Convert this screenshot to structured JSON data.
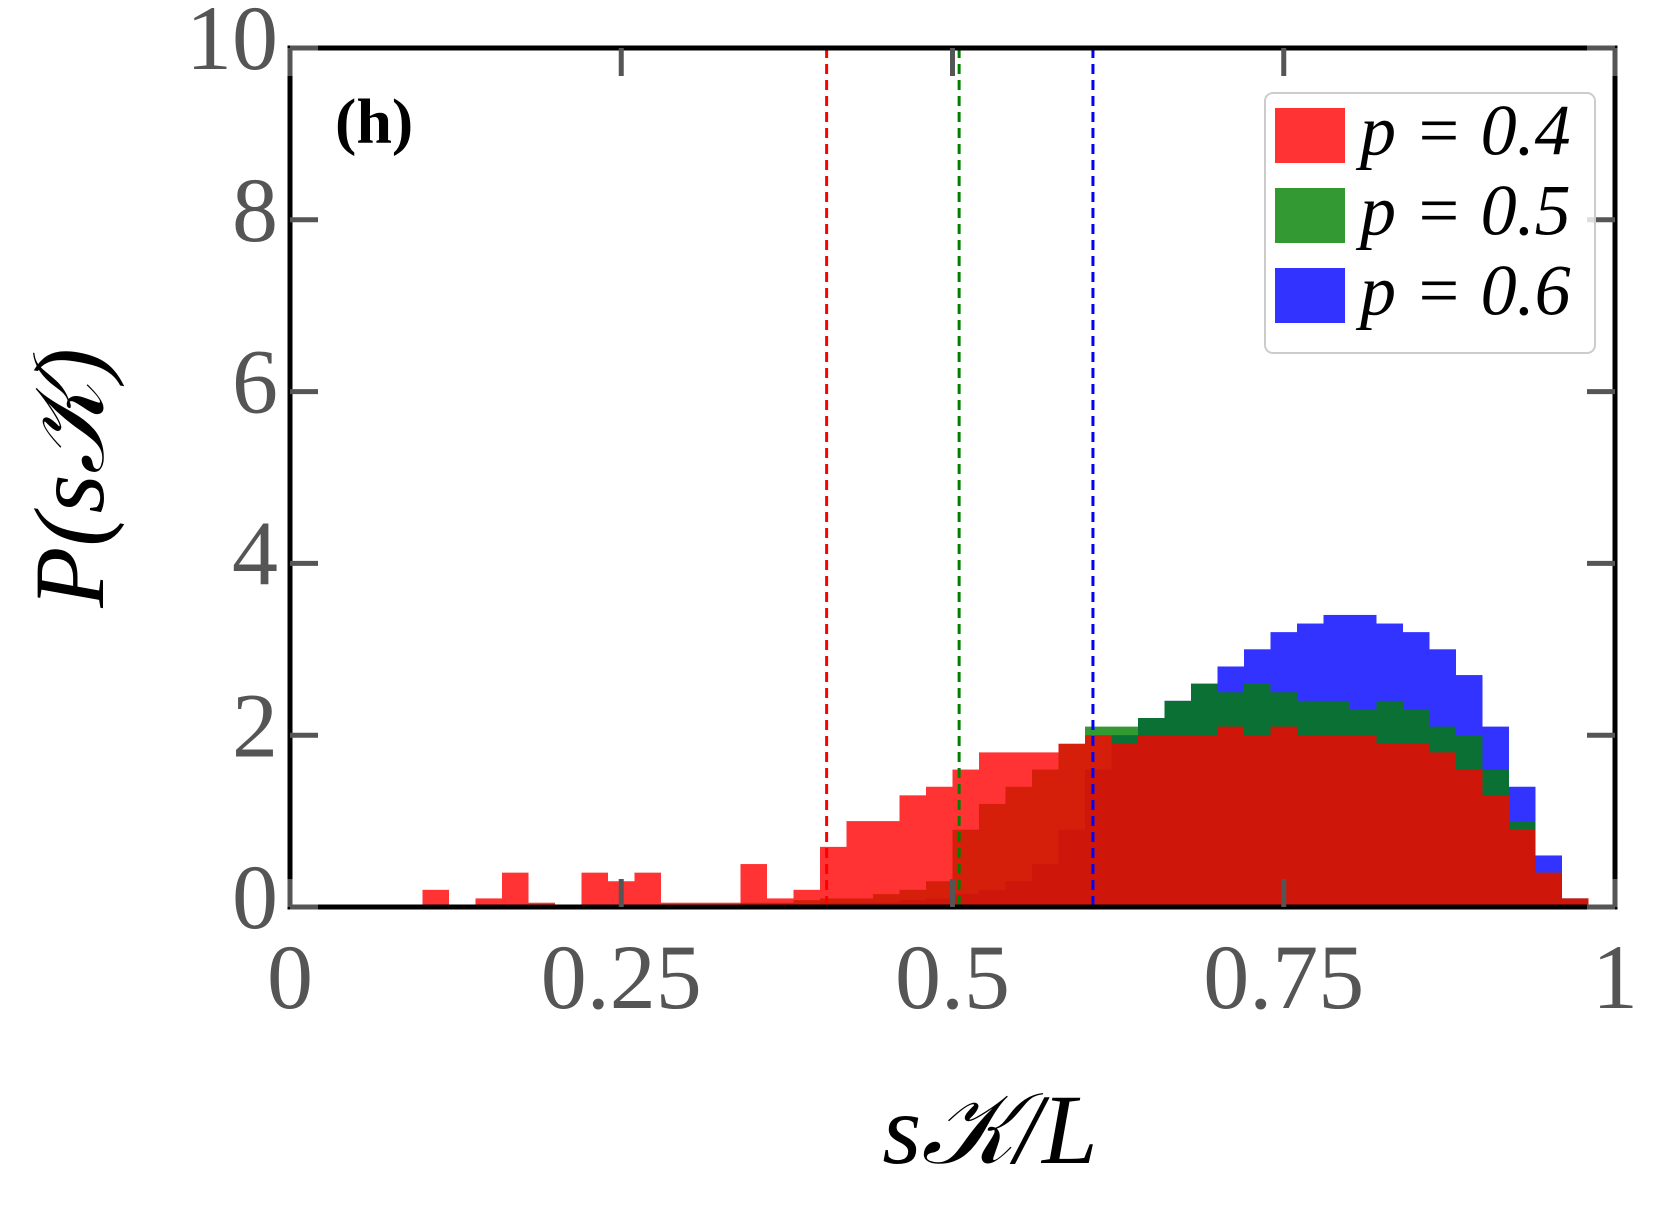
{
  "chart_data": {
    "type": "histogram",
    "annotation": "(h)",
    "x_label": "s𝒦/L",
    "y_label": "P(s𝒦)",
    "bins": [
      0.1,
      0.12,
      0.14,
      0.16,
      0.18,
      0.2,
      0.22,
      0.24,
      0.26,
      0.28,
      0.3,
      0.32,
      0.34,
      0.36,
      0.38,
      0.4,
      0.42,
      0.44,
      0.46,
      0.48,
      0.5,
      0.52,
      0.54,
      0.56,
      0.58,
      0.6,
      0.62,
      0.64,
      0.66,
      0.68,
      0.7,
      0.72,
      0.74,
      0.76,
      0.78,
      0.8,
      0.82,
      0.84,
      0.86,
      0.88,
      0.9,
      0.92,
      0.94,
      0.96,
      0.98
    ],
    "series": [
      {
        "name": "p = 0.6",
        "color": "#0000ff",
        "mean_line": 0.606,
        "values": [
          0,
          0,
          0,
          0,
          0,
          0,
          0,
          0,
          0,
          0,
          0,
          0.02,
          0.02,
          0.03,
          0.03,
          0.05,
          0.05,
          0.05,
          0.08,
          0.1,
          0.15,
          0.2,
          0.3,
          0.5,
          0.9,
          1.6,
          2.0,
          2.2,
          2.4,
          2.6,
          2.8,
          3.0,
          3.2,
          3.3,
          3.4,
          3.4,
          3.3,
          3.2,
          3.0,
          2.7,
          2.1,
          1.4,
          0.6,
          0.1
        ]
      },
      {
        "name": "p = 0.5",
        "color": "#008000",
        "mean_line": 0.505,
        "values": [
          0,
          0,
          0,
          0,
          0,
          0,
          0,
          0,
          0,
          0,
          0.02,
          0.03,
          0.05,
          0.05,
          0.08,
          0.1,
          0.1,
          0.15,
          0.2,
          0.3,
          0.9,
          1.2,
          1.4,
          1.6,
          1.9,
          2.1,
          2.1,
          2.2,
          2.4,
          2.6,
          2.5,
          2.6,
          2.5,
          2.4,
          2.4,
          2.3,
          2.4,
          2.3,
          2.1,
          2.0,
          1.6,
          1.0,
          0.4,
          0.1
        ]
      },
      {
        "name": "p = 0.4",
        "color": "#ff0000",
        "mean_line": 0.405,
        "values": [
          0.2,
          0,
          0.1,
          0.4,
          0.05,
          0,
          0.4,
          0.3,
          0.4,
          0.05,
          0.05,
          0.05,
          0.5,
          0.1,
          0.2,
          0.7,
          1.0,
          1.0,
          1.3,
          1.4,
          1.6,
          1.8,
          1.8,
          1.8,
          1.9,
          2.0,
          1.9,
          2.0,
          2.0,
          2.0,
          2.1,
          2.0,
          2.1,
          2.0,
          2.0,
          2.0,
          1.9,
          1.9,
          1.8,
          1.6,
          1.3,
          0.9,
          0.4,
          0.1
        ]
      }
    ],
    "legend_order": [
      2,
      1,
      0
    ],
    "alpha": 0.8,
    "legend": "upper right",
    "xlim": [
      0,
      1
    ],
    "xticks": [
      0,
      0.25,
      0.5,
      0.75,
      1
    ],
    "ylim": [
      0,
      10
    ],
    "yticks": [
      0,
      2,
      4,
      6,
      8,
      10
    ]
  }
}
